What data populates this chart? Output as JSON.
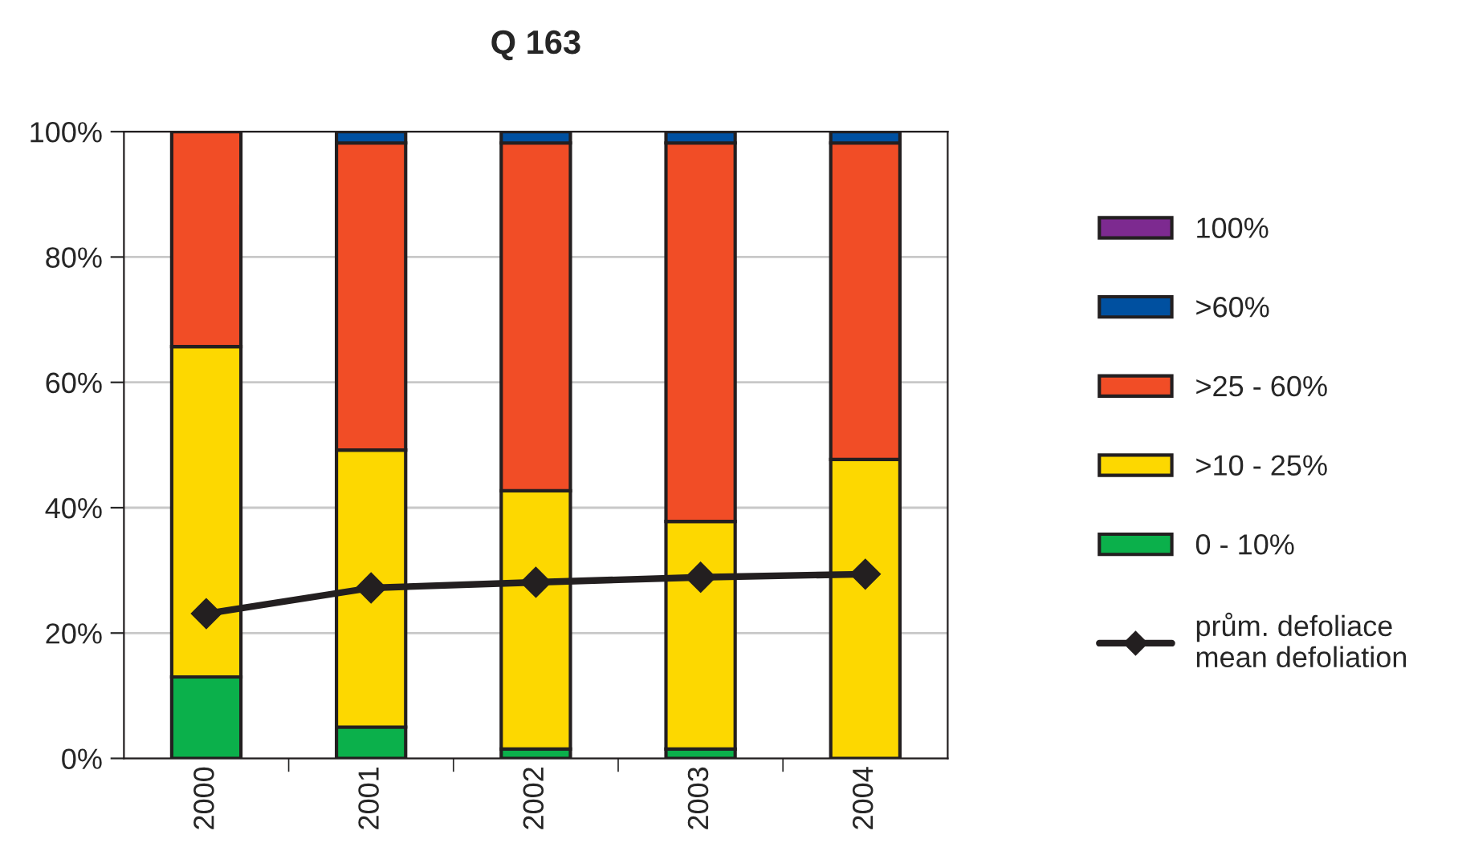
{
  "chart_data": {
    "type": "bar",
    "title": "Q 163",
    "stacked": true,
    "categories": [
      "2000",
      "2001",
      "2002",
      "2003",
      "2004"
    ],
    "series": [
      {
        "name": "0 - 10%",
        "color": "#0bb04b",
        "values": [
          13,
          5,
          1.5,
          1.5,
          0
        ]
      },
      {
        "name": ">10 - 25%",
        "color": "#fdd800",
        "values": [
          52.7,
          44.2,
          41.2,
          36.3,
          47.7
        ]
      },
      {
        "name": ">25 - 60%",
        "color": "#f14d26",
        "values": [
          34.3,
          49,
          55.5,
          60.4,
          50.5
        ]
      },
      {
        "name": ">60%",
        "color": "#0050a0",
        "values": [
          0,
          1.8,
          1.8,
          1.8,
          1.8
        ]
      },
      {
        "name": "100%",
        "color": "#7d2a90",
        "values": [
          0,
          0,
          0,
          0,
          0
        ]
      },
      {
        "name": "prům. defoliace\nmean defoliation",
        "type": "line",
        "color": "#231f20",
        "marker": "diamond",
        "values": [
          23.1,
          27.2,
          28.1,
          28.9,
          29.4
        ]
      }
    ],
    "ylim": [
      0,
      100
    ],
    "yticks": [
      {
        "value": 0,
        "label": "0%"
      },
      {
        "value": 20,
        "label": "20%"
      },
      {
        "value": 40,
        "label": "40%"
      },
      {
        "value": 60,
        "label": "60%"
      },
      {
        "value": 80,
        "label": "80%"
      },
      {
        "value": 100,
        "label": "100%"
      }
    ],
    "grid": "y",
    "legend": "right"
  }
}
